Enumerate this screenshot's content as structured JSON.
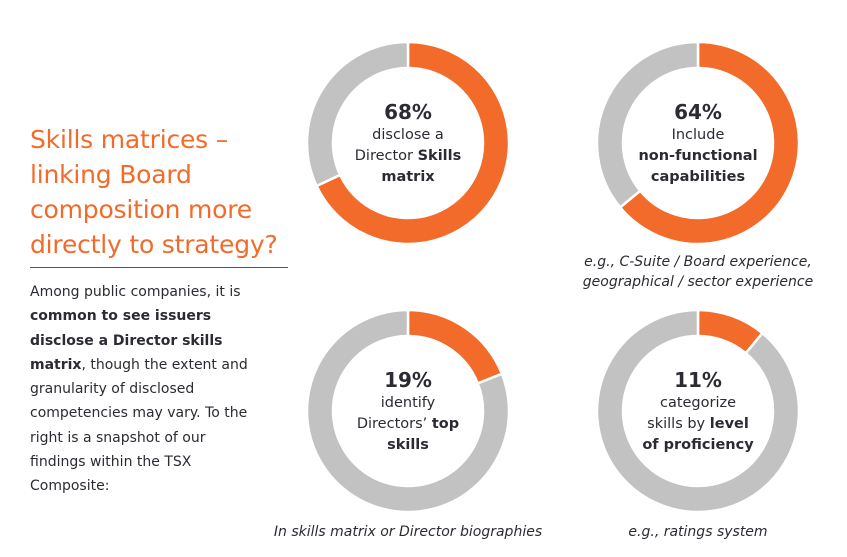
{
  "heading": {
    "title_lines": [
      "Skills matrices –",
      "linking Board",
      "composition more",
      "directly to strategy?"
    ],
    "body": [
      {
        "text": "Among public companies, it is ",
        "bold": false
      },
      {
        "text": "common to see issuers disclose a Director skills matrix",
        "bold": true
      },
      {
        "text": ", though the extent and granularity of disclosed competencies may vary. To the right is a snapshot of our findings within the TSX Composite:",
        "bold": false
      }
    ]
  },
  "colors": {
    "accent": "#f26b2a",
    "remainder": "#c2c2c2",
    "title": "#f26b2a"
  },
  "chart_data": [
    {
      "type": "pie",
      "donut": true,
      "values": [
        68,
        32
      ],
      "percent_label": "68%",
      "lines": [
        [
          {
            "t": "disclose a",
            "b": false
          }
        ],
        [
          {
            "t": "Director ",
            "b": false
          },
          {
            "t": "Skills",
            "b": true
          }
        ],
        [
          {
            "t": "matrix",
            "b": true
          }
        ]
      ],
      "note": []
    },
    {
      "type": "pie",
      "donut": true,
      "values": [
        64,
        36
      ],
      "percent_label": "64%",
      "lines": [
        [
          {
            "t": "Include",
            "b": false
          }
        ],
        [
          {
            "t": "non-functional",
            "b": true
          }
        ],
        [
          {
            "t": "capabilities",
            "b": true
          }
        ]
      ],
      "note": [
        "e.g., C-Suite / Board experience,",
        "geographical / sector experience"
      ]
    },
    {
      "type": "pie",
      "donut": true,
      "values": [
        19,
        81
      ],
      "percent_label": "19%",
      "lines": [
        [
          {
            "t": "identify",
            "b": false
          }
        ],
        [
          {
            "t": "Directors’ ",
            "b": false
          },
          {
            "t": "top",
            "b": true
          }
        ],
        [
          {
            "t": "skills",
            "b": true
          }
        ]
      ],
      "note": [
        "In skills matrix or Director biographies"
      ]
    },
    {
      "type": "pie",
      "donut": true,
      "values": [
        11,
        89
      ],
      "percent_label": "11%",
      "lines": [
        [
          {
            "t": "categorize",
            "b": false
          }
        ],
        [
          {
            "t": "skills by ",
            "b": false
          },
          {
            "t": "level",
            "b": true
          }
        ],
        [
          {
            "t": "of proficiency",
            "b": true
          }
        ]
      ],
      "note": [
        "e.g., ratings system"
      ]
    }
  ]
}
